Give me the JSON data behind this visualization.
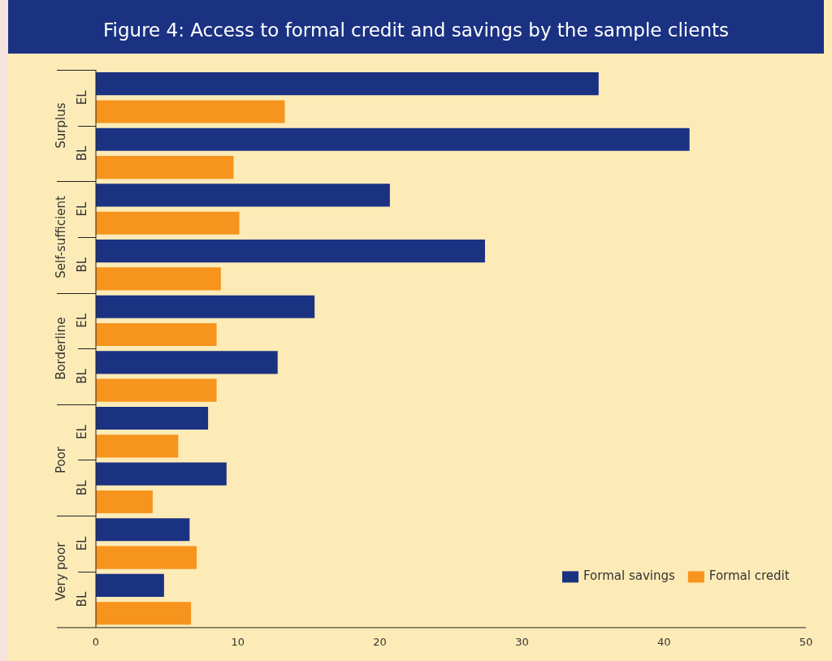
{
  "chart_data": {
    "type": "bar",
    "orientation": "horizontal",
    "title": "Figure 4: Access to formal credit and savings by the sample clients",
    "categories": [
      "EL",
      "BL",
      "EL",
      "BL",
      "EL",
      "BL",
      "EL",
      "BL",
      "EL",
      "BL"
    ],
    "annotations": [
      "Surplus",
      "Self-sufficient",
      "Borderline",
      "Poor",
      "Very poor"
    ],
    "series": [
      {
        "name": "Formal savings",
        "color": "#1b3282",
        "values": [
          35.4,
          41.8,
          20.7,
          27.4,
          15.4,
          12.8,
          7.9,
          9.2,
          6.6,
          4.8
        ]
      },
      {
        "name": "Formal credit",
        "color": "#f7941d",
        "values": [
          13.3,
          9.7,
          10.1,
          8.8,
          8.5,
          8.5,
          5.8,
          4.0,
          7.1,
          6.7
        ]
      }
    ],
    "xlim": [
      0,
      50
    ],
    "xticks": [
      0,
      10,
      20,
      30,
      40,
      50
    ],
    "grid": false,
    "legend": "bottom right"
  }
}
